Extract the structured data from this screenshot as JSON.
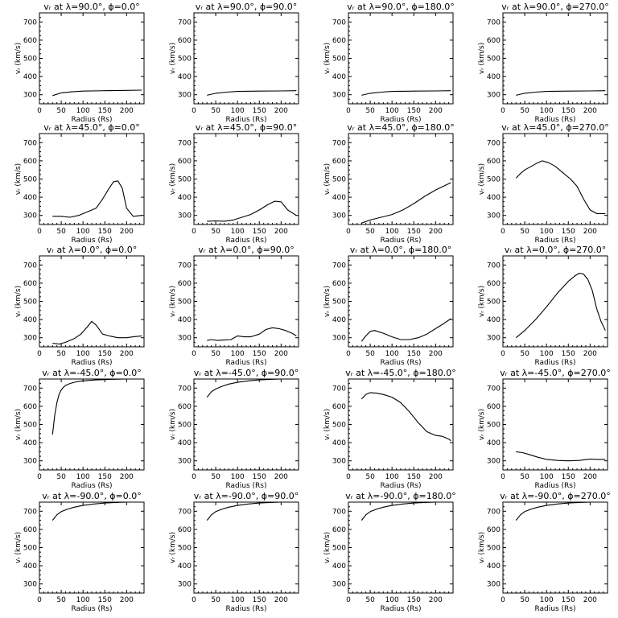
{
  "chart_data": [
    {
      "type": "line",
      "title": "vᵣ at λ=90.0°, ϕ=0.0°",
      "xlabel": "Radius (Rs)",
      "ylabel": "vᵣ (km/s)",
      "xlim": [
        0,
        240
      ],
      "ylim": [
        250,
        750
      ],
      "xticks": [
        0,
        50,
        100,
        150,
        200
      ],
      "yticks": [
        300,
        400,
        500,
        600,
        700
      ],
      "series": [
        {
          "x": [
            30,
            50,
            75,
            100,
            150,
            200,
            235
          ],
          "y": [
            295,
            310,
            316,
            320,
            322,
            324,
            325
          ]
        }
      ]
    },
    {
      "type": "line",
      "title": "vᵣ at λ=90.0°, ϕ=90.0°",
      "xlabel": "Radius (Rs)",
      "ylabel": "vᵣ (km/s)",
      "xlim": [
        0,
        240
      ],
      "ylim": [
        250,
        750
      ],
      "xticks": [
        0,
        50,
        100,
        150,
        200
      ],
      "yticks": [
        300,
        400,
        500,
        600,
        700
      ],
      "series": [
        {
          "x": [
            30,
            50,
            75,
            100,
            150,
            200,
            235
          ],
          "y": [
            297,
            308,
            314,
            318,
            320,
            321,
            322
          ]
        }
      ]
    },
    {
      "type": "line",
      "title": "vᵣ at λ=90.0°, ϕ=180.0°",
      "xlabel": "Radius (Rs)",
      "ylabel": "vᵣ (km/s)",
      "xlim": [
        0,
        240
      ],
      "ylim": [
        250,
        750
      ],
      "xticks": [
        0,
        50,
        100,
        150,
        200
      ],
      "yticks": [
        300,
        400,
        500,
        600,
        700
      ],
      "series": [
        {
          "x": [
            30,
            50,
            75,
            100,
            150,
            200,
            235
          ],
          "y": [
            297,
            308,
            314,
            318,
            320,
            321,
            322
          ]
        }
      ]
    },
    {
      "type": "line",
      "title": "vᵣ at λ=90.0°, ϕ=270.0°",
      "xlabel": "Radius (Rs)",
      "ylabel": "vᵣ (km/s)",
      "xlim": [
        0,
        240
      ],
      "ylim": [
        250,
        750
      ],
      "xticks": [
        0,
        50,
        100,
        150,
        200
      ],
      "yticks": [
        300,
        400,
        500,
        600,
        700
      ],
      "series": [
        {
          "x": [
            30,
            50,
            75,
            100,
            150,
            200,
            235
          ],
          "y": [
            297,
            308,
            314,
            318,
            320,
            321,
            322
          ]
        }
      ]
    },
    {
      "type": "line",
      "title": "vᵣ at λ=45.0°, ϕ=0.0°",
      "xlabel": "Radius (Rs)",
      "ylabel": "vᵣ (km/s)",
      "xlim": [
        0,
        240
      ],
      "ylim": [
        250,
        750
      ],
      "xticks": [
        0,
        50,
        100,
        150,
        200
      ],
      "yticks": [
        300,
        400,
        500,
        600,
        700
      ],
      "series": [
        {
          "x": [
            30,
            50,
            70,
            90,
            110,
            130,
            145,
            160,
            170,
            180,
            190,
            200,
            215,
            235
          ],
          "y": [
            295,
            295,
            290,
            300,
            320,
            340,
            390,
            450,
            485,
            490,
            450,
            340,
            295,
            300
          ]
        }
      ]
    },
    {
      "type": "line",
      "title": "vᵣ at λ=45.0°, ϕ=90.0°",
      "xlabel": "Radius (Rs)",
      "ylabel": "vᵣ (km/s)",
      "xlim": [
        0,
        240
      ],
      "ylim": [
        250,
        750
      ],
      "xticks": [
        0,
        50,
        100,
        150,
        200
      ],
      "yticks": [
        300,
        400,
        500,
        600,
        700
      ],
      "series": [
        {
          "x": [
            30,
            50,
            70,
            90,
            110,
            130,
            150,
            170,
            185,
            200,
            215,
            235
          ],
          "y": [
            268,
            270,
            268,
            275,
            290,
            305,
            330,
            360,
            378,
            375,
            330,
            300
          ]
        }
      ]
    },
    {
      "type": "line",
      "title": "vᵣ at λ=45.0°, ϕ=180.0°",
      "xlabel": "Radius (Rs)",
      "ylabel": "vᵣ (km/s)",
      "xlim": [
        0,
        240
      ],
      "ylim": [
        250,
        750
      ],
      "xticks": [
        0,
        50,
        100,
        150,
        200
      ],
      "yticks": [
        300,
        400,
        500,
        600,
        700
      ],
      "series": [
        {
          "x": [
            30,
            50,
            75,
            100,
            125,
            150,
            175,
            200,
            235
          ],
          "y": [
            258,
            275,
            290,
            305,
            330,
            365,
            405,
            440,
            480
          ]
        }
      ]
    },
    {
      "type": "line",
      "title": "vᵣ at λ=45.0°, ϕ=270.0°",
      "xlabel": "Radius (Rs)",
      "ylabel": "vᵣ (km/s)",
      "xlim": [
        0,
        240
      ],
      "ylim": [
        250,
        750
      ],
      "xticks": [
        0,
        50,
        100,
        150,
        200
      ],
      "yticks": [
        300,
        400,
        500,
        600,
        700
      ],
      "series": [
        {
          "x": [
            30,
            40,
            50,
            65,
            80,
            90,
            105,
            120,
            140,
            155,
            170,
            185,
            200,
            215,
            235
          ],
          "y": [
            505,
            530,
            550,
            570,
            590,
            600,
            590,
            570,
            530,
            500,
            460,
            390,
            330,
            310,
            310
          ]
        }
      ]
    },
    {
      "type": "line",
      "title": "vᵣ at λ=0.0°, ϕ=0.0°",
      "xlabel": "Radius (Rs)",
      "ylabel": "vᵣ (km/s)",
      "xlim": [
        0,
        240
      ],
      "ylim": [
        250,
        750
      ],
      "xticks": [
        0,
        50,
        100,
        150,
        200
      ],
      "yticks": [
        300,
        400,
        500,
        600,
        700
      ],
      "series": [
        {
          "x": [
            30,
            45,
            60,
            80,
            95,
            110,
            120,
            130,
            145,
            160,
            180,
            200,
            215,
            235
          ],
          "y": [
            270,
            265,
            275,
            295,
            320,
            360,
            390,
            370,
            320,
            310,
            300,
            300,
            305,
            310
          ]
        }
      ]
    },
    {
      "type": "line",
      "title": "vᵣ at λ=0.0°, ϕ=90.0°",
      "xlabel": "Radius (Rs)",
      "ylabel": "vᵣ (km/s)",
      "xlim": [
        0,
        240
      ],
      "ylim": [
        250,
        750
      ],
      "xticks": [
        0,
        50,
        100,
        150,
        200
      ],
      "yticks": [
        300,
        400,
        500,
        600,
        700
      ],
      "series": [
        {
          "x": [
            30,
            40,
            55,
            70,
            85,
            100,
            115,
            130,
            150,
            165,
            180,
            195,
            210,
            225,
            235
          ],
          "y": [
            285,
            290,
            285,
            288,
            290,
            310,
            305,
            305,
            320,
            345,
            355,
            350,
            340,
            325,
            310
          ]
        }
      ]
    },
    {
      "type": "line",
      "title": "vᵣ at λ=0.0°, ϕ=180.0°",
      "xlabel": "Radius (Rs)",
      "ylabel": "vᵣ (km/s)",
      "xlim": [
        0,
        240
      ],
      "ylim": [
        250,
        750
      ],
      "xticks": [
        0,
        50,
        100,
        150,
        200
      ],
      "yticks": [
        300,
        400,
        500,
        600,
        700
      ],
      "series": [
        {
          "x": [
            30,
            40,
            50,
            60,
            80,
            100,
            120,
            140,
            160,
            180,
            200,
            220,
            235
          ],
          "y": [
            280,
            310,
            335,
            340,
            325,
            305,
            290,
            290,
            300,
            320,
            350,
            380,
            405
          ]
        }
      ]
    },
    {
      "type": "line",
      "title": "vᵣ at λ=0.0°, ϕ=270.0°",
      "xlabel": "Radius (Rs)",
      "ylabel": "vᵣ (km/s)",
      "xlim": [
        0,
        240
      ],
      "ylim": [
        250,
        750
      ],
      "xticks": [
        0,
        50,
        100,
        150,
        200
      ],
      "yticks": [
        300,
        400,
        500,
        600,
        700
      ],
      "series": [
        {
          "x": [
            30,
            50,
            75,
            100,
            125,
            150,
            165,
            175,
            185,
            195,
            205,
            215,
            225,
            235
          ],
          "y": [
            300,
            340,
            400,
            470,
            545,
            610,
            640,
            655,
            650,
            620,
            560,
            460,
            390,
            340
          ]
        }
      ]
    },
    {
      "type": "line",
      "title": "vᵣ at λ=-45.0°, ϕ=0.0°",
      "xlabel": "Radius (Rs)",
      "ylabel": "vᵣ (km/s)",
      "xlim": [
        0,
        240
      ],
      "ylim": [
        250,
        750
      ],
      "xticks": [
        0,
        50,
        100,
        150,
        200
      ],
      "yticks": [
        300,
        400,
        500,
        600,
        700
      ],
      "series": [
        {
          "x": [
            30,
            35,
            40,
            45,
            50,
            55,
            60,
            70,
            85,
            100,
            130,
            160,
            200,
            235
          ],
          "y": [
            445,
            550,
            620,
            665,
            690,
            705,
            715,
            725,
            735,
            740,
            745,
            748,
            750,
            750
          ]
        }
      ]
    },
    {
      "type": "line",
      "title": "vᵣ at λ=-45.0°, ϕ=90.0°",
      "xlabel": "Radius (Rs)",
      "ylabel": "vᵣ (km/s)",
      "xlim": [
        0,
        240
      ],
      "ylim": [
        250,
        750
      ],
      "xticks": [
        0,
        50,
        100,
        150,
        200
      ],
      "yticks": [
        300,
        400,
        500,
        600,
        700
      ],
      "series": [
        {
          "x": [
            30,
            40,
            50,
            65,
            80,
            100,
            125,
            150,
            175,
            200,
            235
          ],
          "y": [
            650,
            680,
            695,
            710,
            722,
            732,
            740,
            745,
            748,
            750,
            750
          ]
        }
      ]
    },
    {
      "type": "line",
      "title": "vᵣ at λ=-45.0°, ϕ=180.0°",
      "xlabel": "Radius (Rs)",
      "ylabel": "vᵣ (km/s)",
      "xlim": [
        0,
        240
      ],
      "ylim": [
        250,
        750
      ],
      "xticks": [
        0,
        50,
        100,
        150,
        200
      ],
      "yticks": [
        300,
        400,
        500,
        600,
        700
      ],
      "series": [
        {
          "x": [
            30,
            40,
            50,
            65,
            80,
            100,
            120,
            140,
            160,
            180,
            200,
            215,
            230,
            235
          ],
          "y": [
            640,
            665,
            675,
            672,
            665,
            650,
            620,
            570,
            510,
            460,
            440,
            435,
            420,
            410
          ]
        }
      ]
    },
    {
      "type": "line",
      "title": "vᵣ at λ=-45.0°, ϕ=270.0°",
      "xlabel": "Radius (Rs)",
      "ylabel": "vᵣ (km/s)",
      "xlim": [
        0,
        240
      ],
      "ylim": [
        250,
        750
      ],
      "xticks": [
        0,
        50,
        100,
        150,
        200
      ],
      "yticks": [
        300,
        400,
        500,
        600,
        700
      ],
      "series": [
        {
          "x": [
            30,
            45,
            60,
            80,
            100,
            125,
            150,
            175,
            200,
            215,
            235
          ],
          "y": [
            350,
            345,
            335,
            320,
            308,
            302,
            300,
            302,
            310,
            308,
            308
          ]
        }
      ]
    },
    {
      "type": "line",
      "title": "vᵣ at λ=-90.0°, ϕ=0.0°",
      "xlabel": "Radius (Rs)",
      "ylabel": "vᵣ (km/s)",
      "xlim": [
        0,
        240
      ],
      "ylim": [
        250,
        750
      ],
      "xticks": [
        0,
        50,
        100,
        150,
        200
      ],
      "yticks": [
        300,
        400,
        500,
        600,
        700
      ],
      "series": [
        {
          "x": [
            30,
            40,
            50,
            65,
            80,
            100,
            125,
            150,
            175,
            200,
            235
          ],
          "y": [
            650,
            680,
            698,
            712,
            722,
            732,
            740,
            745,
            748,
            750,
            750
          ]
        }
      ]
    },
    {
      "type": "line",
      "title": "vᵣ at λ=-90.0°, ϕ=90.0°",
      "xlabel": "Radius (Rs)",
      "ylabel": "vᵣ (km/s)",
      "xlim": [
        0,
        240
      ],
      "ylim": [
        250,
        750
      ],
      "xticks": [
        0,
        50,
        100,
        150,
        200
      ],
      "yticks": [
        300,
        400,
        500,
        600,
        700
      ],
      "series": [
        {
          "x": [
            30,
            40,
            50,
            65,
            80,
            100,
            125,
            150,
            175,
            200,
            235
          ],
          "y": [
            650,
            680,
            698,
            712,
            722,
            732,
            740,
            745,
            748,
            750,
            750
          ]
        }
      ]
    },
    {
      "type": "line",
      "title": "vᵣ at λ=-90.0°, ϕ=180.0°",
      "xlabel": "Radius (Rs)",
      "ylabel": "vᵣ (km/s)",
      "xlim": [
        0,
        240
      ],
      "ylim": [
        250,
        750
      ],
      "xticks": [
        0,
        50,
        100,
        150,
        200
      ],
      "yticks": [
        300,
        400,
        500,
        600,
        700
      ],
      "series": [
        {
          "x": [
            30,
            40,
            50,
            65,
            80,
            100,
            125,
            150,
            175,
            200,
            235
          ],
          "y": [
            650,
            680,
            698,
            712,
            722,
            732,
            740,
            745,
            748,
            750,
            750
          ]
        }
      ]
    },
    {
      "type": "line",
      "title": "vᵣ at λ=-90.0°, ϕ=270.0°",
      "xlabel": "Radius (Rs)",
      "ylabel": "vᵣ (km/s)",
      "xlim": [
        0,
        240
      ],
      "ylim": [
        250,
        750
      ],
      "xticks": [
        0,
        50,
        100,
        150,
        200
      ],
      "yticks": [
        300,
        400,
        500,
        600,
        700
      ],
      "series": [
        {
          "x": [
            30,
            40,
            50,
            65,
            80,
            100,
            125,
            150,
            175,
            200,
            235
          ],
          "y": [
            650,
            680,
            698,
            712,
            722,
            732,
            740,
            745,
            748,
            750,
            750
          ]
        }
      ]
    }
  ]
}
